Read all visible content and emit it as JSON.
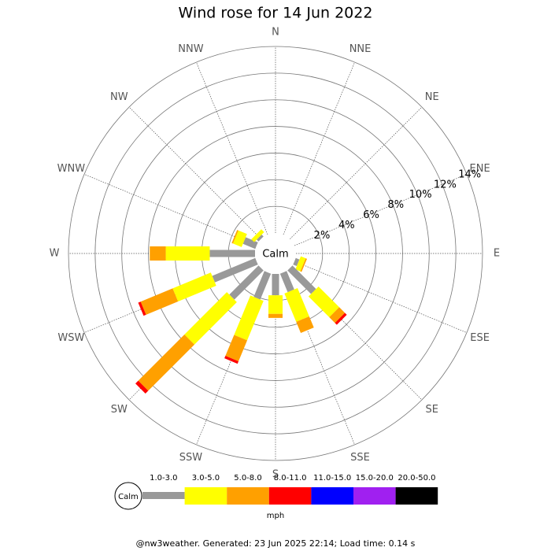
{
  "chart_data": {
    "type": "wind_rose",
    "title": "Wind rose for 14 Jun 2022",
    "directions": [
      "N",
      "NNE",
      "NE",
      "ENE",
      "E",
      "ESE",
      "SE",
      "SSE",
      "S",
      "SSW",
      "SW",
      "WSW",
      "W",
      "WNW",
      "NW",
      "NNW"
    ],
    "calm_label": "Calm",
    "unit": "mph",
    "rlim": [
      0,
      14
    ],
    "rticks": [
      {
        "value": 2,
        "label": "2%"
      },
      {
        "value": 4,
        "label": "4%"
      },
      {
        "value": 6,
        "label": "6%"
      },
      {
        "value": 8,
        "label": "8%"
      },
      {
        "value": 10,
        "label": "10%"
      },
      {
        "value": 12,
        "label": "12%"
      },
      {
        "value": 14,
        "label": "14%"
      }
    ],
    "series": [
      {
        "name": "1.0-3.0",
        "color": "#999999",
        "values": [
          0,
          0,
          0,
          0,
          0,
          0.3,
          2.5,
          1.5,
          1.6,
          2.1,
          3.1,
          3.5,
          3.4,
          1.0,
          0.2,
          0
        ]
      },
      {
        "name": "3.0-5.0",
        "color": "#ffff00",
        "values": [
          0,
          0,
          0,
          0,
          0,
          0.4,
          2.2,
          2.3,
          1.4,
          3.2,
          4.5,
          3.1,
          3.3,
          0.7,
          0.3,
          0
        ]
      },
      {
        "name": "5.0-8.0",
        "color": "#ffa000",
        "values": [
          0,
          0,
          0,
          0,
          0,
          0.1,
          0.6,
          0.9,
          0.3,
          1.7,
          4.9,
          2.6,
          1.2,
          0.1,
          0,
          0
        ]
      },
      {
        "name": "8.0-11.0",
        "color": "#ff0000",
        "values": [
          0,
          0,
          0,
          0,
          0,
          0,
          0.2,
          0,
          0,
          0.2,
          0.3,
          0.2,
          0,
          0,
          0,
          0
        ]
      },
      {
        "name": "11.0-15.0",
        "color": "#0000ff",
        "values": [
          0,
          0,
          0,
          0,
          0,
          0,
          0,
          0,
          0,
          0,
          0,
          0,
          0,
          0,
          0,
          0
        ]
      },
      {
        "name": "15.0-20.0",
        "color": "#a020f0",
        "values": [
          0,
          0,
          0,
          0,
          0,
          0,
          0,
          0,
          0,
          0,
          0,
          0,
          0,
          0,
          0,
          0
        ]
      },
      {
        "name": "20.0-50.0",
        "color": "#000000",
        "values": [
          0,
          0,
          0,
          0,
          0,
          0,
          0,
          0,
          0,
          0,
          0,
          0,
          0,
          0,
          0,
          0
        ]
      }
    ],
    "footer": "@nw3weather. Generated: 23 Jun 2025 22:14; Load time: 0.14 s"
  }
}
